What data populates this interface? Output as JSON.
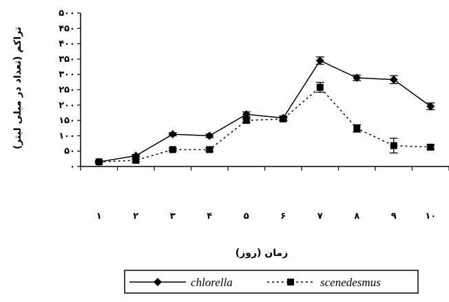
{
  "chart_data": {
    "type": "line",
    "ylabel": "تراکم (تعداد در میلی لیتر)",
    "xlabel": "زمان (روز)",
    "x": [
      1,
      2,
      3,
      4,
      5,
      6,
      7,
      8,
      9,
      10
    ],
    "x_tick_labels": [
      "١",
      "٢",
      "٣",
      "۴",
      "۵",
      "۶",
      "٧",
      "٨",
      "٩",
      "١٠"
    ],
    "ylim": [
      0,
      500
    ],
    "y_ticks": [
      0,
      50,
      100,
      150,
      200,
      250,
      300,
      350,
      400,
      450,
      500
    ],
    "y_tick_labels": [
      "٠",
      "۵٠",
      "١٠٠",
      "١۵٠",
      "٢٠٠",
      "٢۵٠",
      "٣٠٠",
      "٣۵٠",
      "۴٠٠",
      "۴۵٠",
      "۵٠٠"
    ],
    "grid": false,
    "legend_position": "bottom",
    "series": [
      {
        "name": "chlorella",
        "color": "#000000",
        "line": "solid",
        "marker": "diamond",
        "values": [
          15,
          35,
          105,
          100,
          170,
          158,
          345,
          289,
          283,
          196
        ],
        "errors": [
          3,
          4,
          5,
          6,
          8,
          6,
          12,
          9,
          13,
          11
        ]
      },
      {
        "name": "scenedesmus",
        "color": "#000000",
        "line": "dotted",
        "marker": "square",
        "values": [
          15,
          20,
          55,
          55,
          150,
          155,
          258,
          124,
          68,
          63
        ],
        "errors": [
          3,
          4,
          4,
          5,
          6,
          6,
          16,
          12,
          24,
          7
        ]
      }
    ]
  }
}
